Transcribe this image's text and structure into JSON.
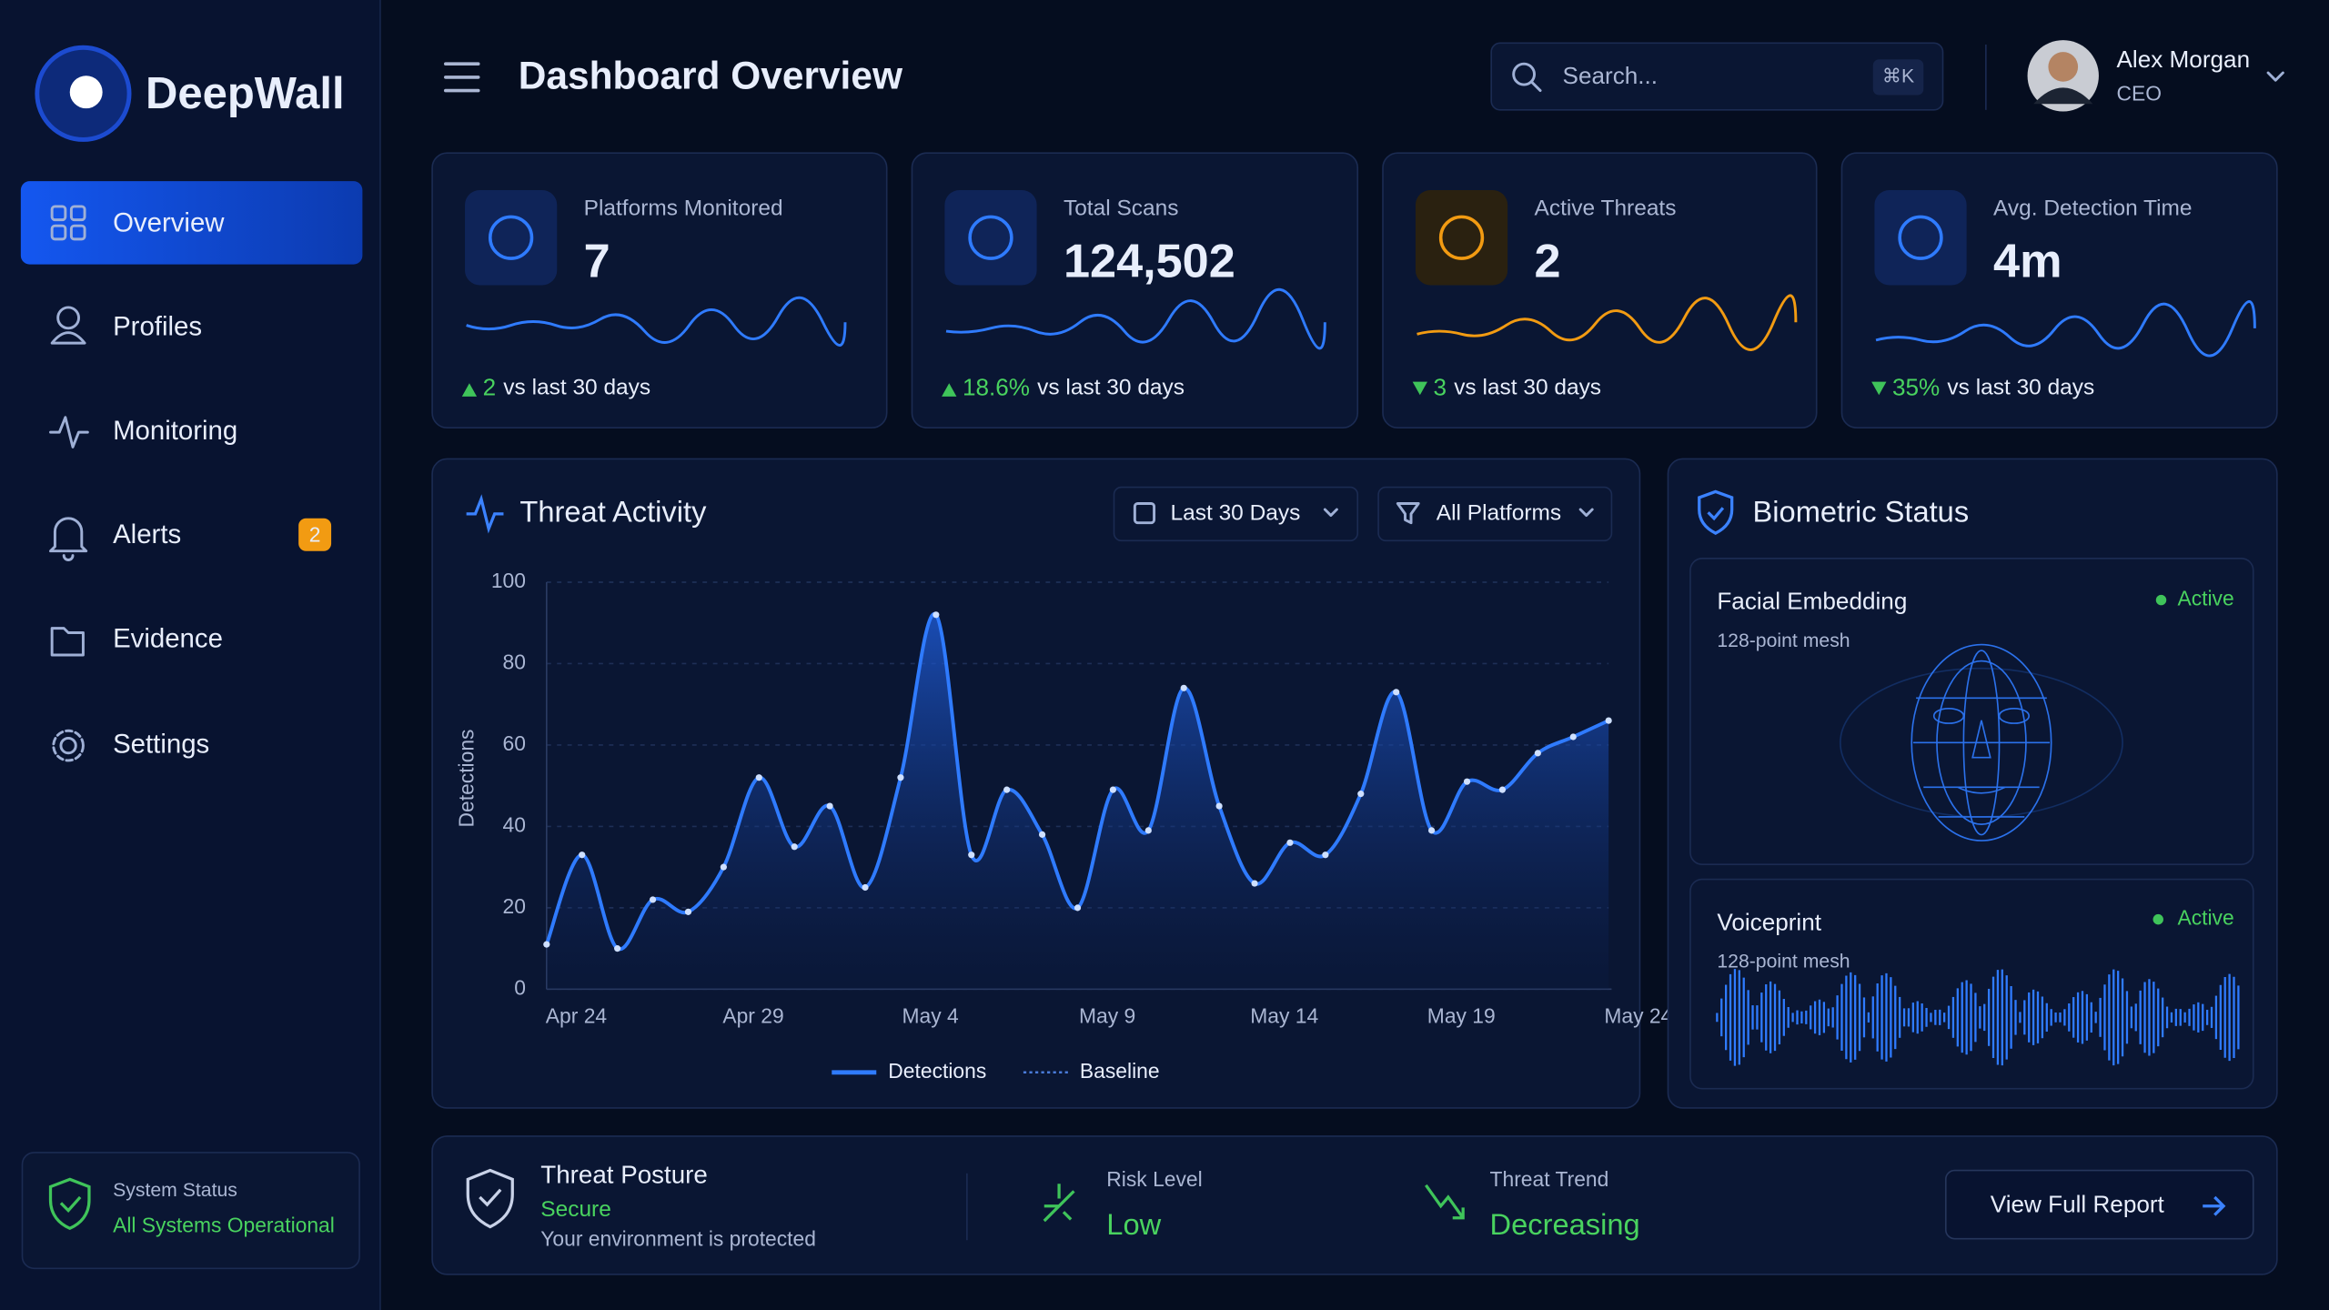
{
  "brand": "DeepWall",
  "header": {
    "title": "Dashboard Overview",
    "search_placeholder": "Search...",
    "shortcut": "⌘K",
    "user_name": "Alex Morgan",
    "user_role": "CEO"
  },
  "nav": [
    {
      "label": "Overview"
    },
    {
      "label": "Profiles"
    },
    {
      "label": "Monitoring"
    },
    {
      "label": "Alerts",
      "badge": "2"
    },
    {
      "label": "Evidence"
    },
    {
      "label": "Settings"
    }
  ],
  "system_status": {
    "title": "System Status",
    "text": "All Systems Operational"
  },
  "kpis": [
    {
      "label": "Platforms Monitored",
      "value": "7",
      "delta": "2",
      "delta_text": "vs last 30 days"
    },
    {
      "label": "Total Scans",
      "value": "124,502",
      "delta": "18.6%",
      "delta_text": "vs last 30 days"
    },
    {
      "label": "Active Threats",
      "value": "2",
      "delta": "3",
      "delta_text": "vs last 30 days"
    },
    {
      "label": "Avg. Detection Time",
      "value": "4m",
      "delta": "35%",
      "delta_text": "vs last 30 days"
    }
  ],
  "chart_controls": {
    "range": "Last 30 Days",
    "platforms": "All Platforms"
  },
  "chart_data": {
    "type": "line",
    "title": "Threat Activity",
    "y_label": "Detections",
    "categories": [
      "Apr 24",
      null,
      null,
      null,
      null,
      "Apr 29",
      null,
      null,
      null,
      null,
      "May 4",
      null,
      null,
      null,
      null,
      "May 9",
      null,
      null,
      null,
      null,
      "May 14",
      null,
      null,
      null,
      null,
      "May 19",
      null,
      null,
      null,
      null,
      "May 24"
    ],
    "series": [
      {
        "name": "Detections",
        "color": "#2f7bff",
        "values": [
          11,
          33,
          10,
          22,
          19,
          30,
          52,
          35,
          45,
          25,
          52,
          92,
          33,
          49,
          38,
          20,
          49,
          39,
          74,
          45,
          26,
          36,
          33,
          48,
          73,
          39,
          51,
          49,
          58,
          62,
          66
        ]
      },
      {
        "name": "Baseline",
        "color": "#4a7bd8",
        "values": [
          null,
          null,
          null,
          null,
          null,
          null,
          null,
          null,
          null,
          null,
          null,
          null,
          null,
          null,
          null,
          null,
          null,
          null,
          null,
          null,
          null,
          null,
          null,
          null,
          null,
          null,
          null,
          null,
          null,
          null,
          null
        ]
      }
    ],
    "ylim": [
      0,
      100
    ],
    "yticks": [
      0,
      20,
      40,
      60,
      80,
      100
    ],
    "grid": true
  },
  "biometric": {
    "title": "Biometric Status",
    "items": [
      {
        "name": "Facial Embedding",
        "sub": "128-point mesh",
        "status": "Active"
      },
      {
        "name": "Voiceprint",
        "sub": "128-point mesh",
        "status": "Active"
      }
    ]
  },
  "posture": {
    "title": "Threat Posture",
    "status": "Secure",
    "text": "Your environment is protected",
    "risk_label": "Risk Level",
    "risk_value": "Low",
    "trend_label": "Threat Trend",
    "trend_value": "Decreasing",
    "button": "View Full Report"
  }
}
